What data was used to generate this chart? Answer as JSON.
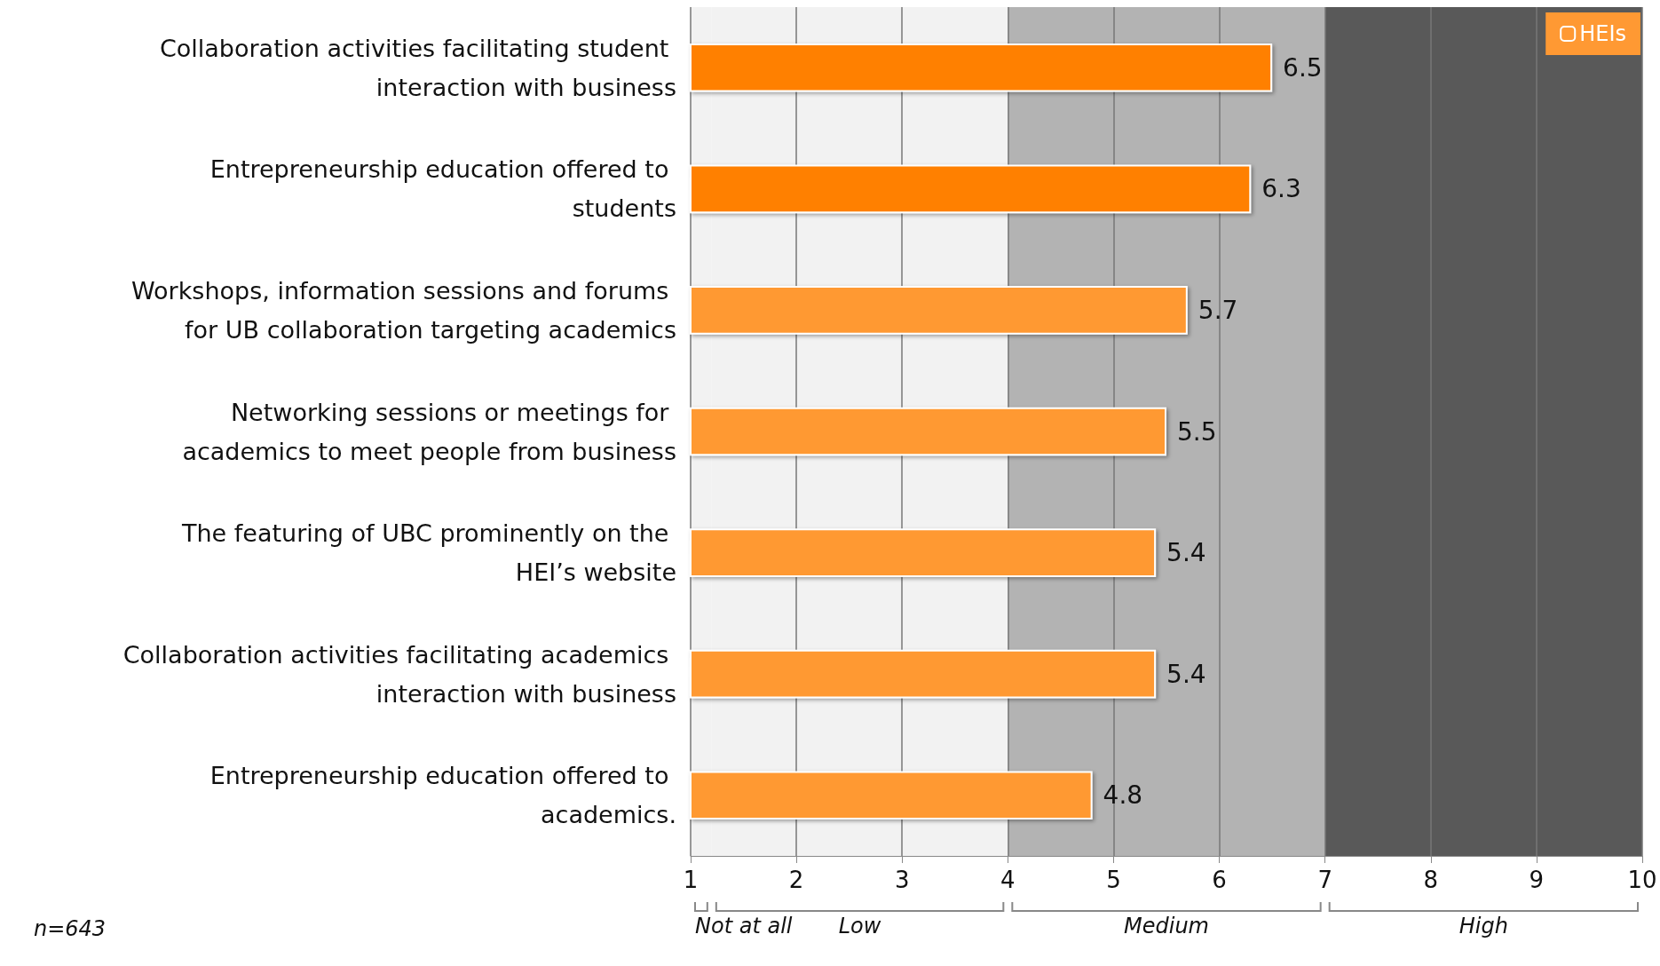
{
  "chart_data": {
    "type": "bar",
    "orientation": "horizontal",
    "categories": [
      "Collaboration activities facilitating student interaction with business",
      "Entrepreneurship education offered to students",
      "Workshops, information sessions and forums for UB collaboration targeting academics",
      "Networking sessions or meetings for academics to meet people from business",
      "The featuring of UBC prominently on the HEI’s website",
      "Collaboration activities facilitating academics interaction with business",
      "Entrepreneurship education offered to academics."
    ],
    "series": [
      {
        "name": "HEIs",
        "color": "#ff9933",
        "values": [
          6.5,
          6.3,
          5.7,
          5.5,
          5.4,
          5.4,
          4.8
        ],
        "colors": [
          "#ff8000",
          "#ff8000",
          "#ff9933",
          "#ff9933",
          "#ff9933",
          "#ff9933",
          "#ff9933"
        ]
      }
    ],
    "xlim": [
      1,
      10
    ],
    "xticks": [
      1,
      2,
      3,
      4,
      5,
      6,
      7,
      8,
      9,
      10
    ],
    "bands": [
      {
        "axis": "x",
        "from": 1,
        "to": 1.2,
        "label": "Not at all",
        "color": "#f2f2f2"
      },
      {
        "axis": "x",
        "from": 1.2,
        "to": 4,
        "label": "Low",
        "color": "#f2f2f2"
      },
      {
        "axis": "x",
        "from": 4,
        "to": 7,
        "label": "Medium",
        "color": "#b3b3b3"
      },
      {
        "axis": "x",
        "from": 7,
        "to": 10,
        "label": "High",
        "color": "#595959"
      }
    ],
    "data_labels": true,
    "grid": "x",
    "legend": "top right",
    "annotations": [
      "n=643"
    ]
  }
}
